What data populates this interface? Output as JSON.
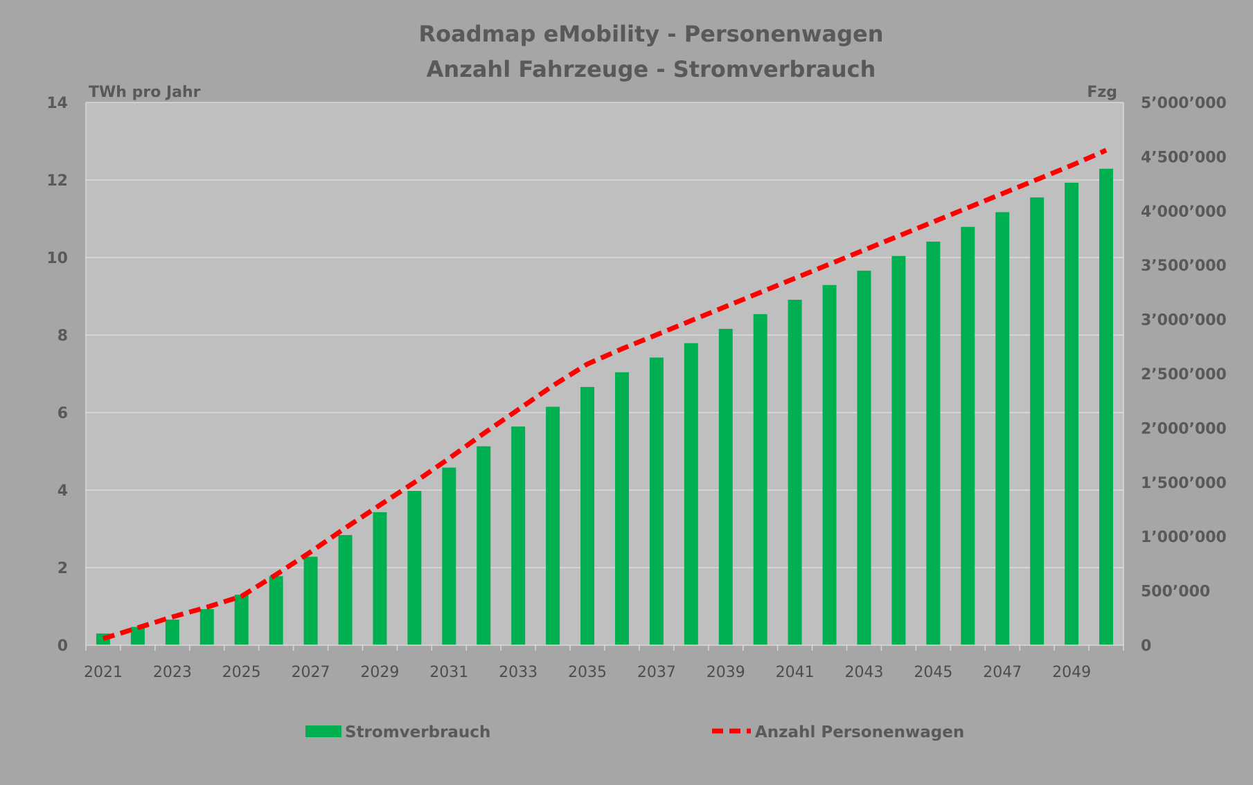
{
  "chart_data": {
    "type": "bar+line",
    "title": [
      "Roadmap eMobility - Personenwagen",
      "Anzahl Fahrzeuge - Stromverbrauch"
    ],
    "y_left_label": "TWh pro Jahr",
    "y_right_label": "Fzg",
    "y_left_range": [
      0,
      14
    ],
    "y_left_ticks": [
      "0",
      "2",
      "4",
      "6",
      "8",
      "10",
      "12",
      "14"
    ],
    "y_right_range": [
      0,
      5000000
    ],
    "y_right_ticks": [
      "0",
      "500’000",
      "1’000’000",
      "1’500’000",
      "2’000’000",
      "2’500’000",
      "3’000’000",
      "3’500’000",
      "4’000’000",
      "4’500’000",
      "5’000’000"
    ],
    "x": [
      2021,
      2022,
      2023,
      2024,
      2025,
      2026,
      2027,
      2028,
      2029,
      2030,
      2031,
      2032,
      2033,
      2034,
      2035,
      2036,
      2037,
      2038,
      2039,
      2040,
      2041,
      2042,
      2043,
      2044,
      2045,
      2046,
      2047,
      2048,
      2049,
      2050
    ],
    "x_tick_labels": [
      "2021",
      "2023",
      "2025",
      "2027",
      "2029",
      "2031",
      "2033",
      "2035",
      "2037",
      "2039",
      "2041",
      "2043",
      "2045",
      "2047",
      "2049"
    ],
    "grid": true,
    "legend_position": "bottom",
    "series": [
      {
        "name": "Stromverbrauch",
        "type": "bar",
        "axis": "left",
        "color": "#00b050",
        "values": [
          0.3,
          0.47,
          0.66,
          0.93,
          1.3,
          1.78,
          2.28,
          2.84,
          3.43,
          3.98,
          4.58,
          5.13,
          5.64,
          6.15,
          6.66,
          7.04,
          7.42,
          7.79,
          8.16,
          8.54,
          8.91,
          9.29,
          9.66,
          10.04,
          10.41,
          10.79,
          11.17,
          11.55,
          11.93,
          12.29
        ]
      },
      {
        "name": "Anzahl Personenwagen",
        "type": "line",
        "axis": "right",
        "color": "#ff0000",
        "dashed": true,
        "values": [
          60000,
          160000,
          260000,
          350000,
          450000,
          650000,
          860000,
          1080000,
          1290000,
          1500000,
          1720000,
          1950000,
          2170000,
          2390000,
          2590000,
          2730000,
          2860000,
          2990000,
          3120000,
          3250000,
          3380000,
          3510000,
          3640000,
          3770000,
          3900000,
          4030000,
          4160000,
          4290000,
          4420000,
          4560000
        ]
      }
    ]
  }
}
